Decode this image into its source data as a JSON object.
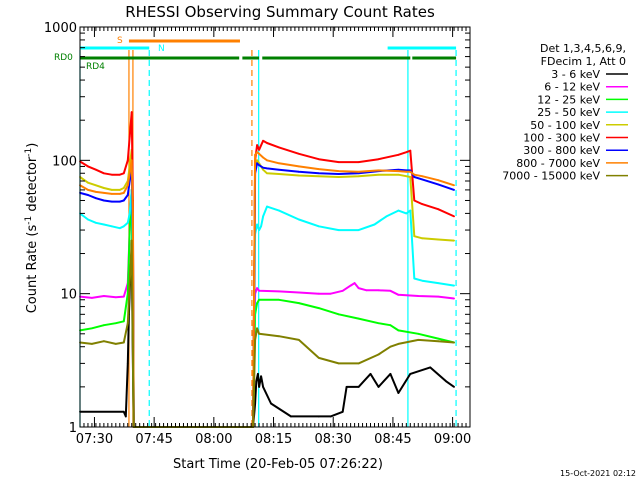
{
  "chart_data": {
    "type": "line",
    "title": "RHESSI Observing Summary Count Rates",
    "xlabel": "Start Time (20-Feb-05 07:26:22)",
    "ylabel_main": "Count Rate (s",
    "ylabel_sup1": "-1",
    "ylabel_mid": " detector",
    "ylabel_sup2": "-1",
    "ylabel_end": ")",
    "yscale": "log",
    "ylim": [
      1,
      1000
    ],
    "xlim_minutes": [
      0,
      98
    ],
    "yticks": [
      {
        "value": 1,
        "label": "1"
      },
      {
        "value": 10,
        "label": "10"
      },
      {
        "value": 100,
        "label": "100"
      },
      {
        "value": 1000,
        "label": "1000"
      }
    ],
    "xticks": [
      {
        "minute": 3.63,
        "label": "07:30"
      },
      {
        "minute": 18.63,
        "label": "07:45"
      },
      {
        "minute": 33.63,
        "label": "08:00"
      },
      {
        "minute": 48.63,
        "label": "08:15"
      },
      {
        "minute": 63.63,
        "label": "08:30"
      },
      {
        "minute": 78.63,
        "label": "08:45"
      },
      {
        "minute": 93.63,
        "label": "09:00"
      }
    ],
    "legend": {
      "title1": "Det 1,3,4,5,6,9,",
      "title2": "FDecim 1, Att 0",
      "position": "right"
    },
    "series": [
      {
        "name": "3 - 6 keV",
        "color": "#000000",
        "points": [
          [
            0,
            1.3
          ],
          [
            11,
            1.3
          ],
          [
            11.5,
            1.2
          ],
          [
            12,
            3.0
          ],
          [
            12.3,
            7.0
          ],
          [
            12.7,
            15.0
          ],
          [
            13,
            20.0
          ],
          [
            13.3,
            3.0
          ],
          [
            13.5,
            1.0
          ],
          [
            43.5,
            1.0
          ],
          [
            44,
            1.5
          ],
          [
            44.3,
            2.2
          ],
          [
            44.7,
            2.5
          ],
          [
            45,
            2.0
          ],
          [
            45.5,
            2.4
          ],
          [
            46,
            2.0
          ],
          [
            48,
            1.5
          ],
          [
            53,
            1.2
          ],
          [
            60,
            1.2
          ],
          [
            63,
            1.2
          ],
          [
            66,
            1.3
          ],
          [
            67,
            2.0
          ],
          [
            70,
            2.0
          ],
          [
            73,
            2.5
          ],
          [
            75,
            2.0
          ],
          [
            78,
            2.5
          ],
          [
            80,
            1.8
          ],
          [
            83,
            2.5
          ],
          [
            88,
            2.8
          ],
          [
            92,
            2.2
          ],
          [
            94,
            2.0
          ]
        ]
      },
      {
        "name": "6 - 12 keV",
        "color": "#ff00ff",
        "points": [
          [
            0,
            9.5
          ],
          [
            3,
            9.3
          ],
          [
            6,
            9.6
          ],
          [
            9,
            9.4
          ],
          [
            11,
            9.5
          ],
          [
            12,
            12.0
          ],
          [
            12.5,
            30.0
          ],
          [
            13,
            60.0
          ],
          [
            13.3,
            8.0
          ],
          [
            13.5,
            1.0
          ],
          [
            43.5,
            1.0
          ],
          [
            44,
            10.0
          ],
          [
            44.5,
            11.0
          ],
          [
            45,
            10.5
          ],
          [
            50,
            10.4
          ],
          [
            55,
            10.2
          ],
          [
            60,
            10.0
          ],
          [
            63,
            10.0
          ],
          [
            66,
            10.5
          ],
          [
            68,
            11.5
          ],
          [
            69,
            12.0
          ],
          [
            70,
            11.0
          ],
          [
            72,
            10.6
          ],
          [
            75,
            10.6
          ],
          [
            78,
            10.5
          ],
          [
            80,
            9.8
          ],
          [
            85,
            9.6
          ],
          [
            90,
            9.5
          ],
          [
            94,
            9.2
          ]
        ]
      },
      {
        "name": "12 - 25 keV",
        "color": "#00ff00",
        "points": [
          [
            0,
            5.3
          ],
          [
            3,
            5.5
          ],
          [
            6,
            5.8
          ],
          [
            9,
            6.0
          ],
          [
            11,
            6.2
          ],
          [
            12,
            10.0
          ],
          [
            12.5,
            30.0
          ],
          [
            13,
            60.0
          ],
          [
            13.3,
            5.0
          ],
          [
            13.5,
            1.0
          ],
          [
            43.5,
            1.0
          ],
          [
            44,
            7.0
          ],
          [
            44.5,
            8.5
          ],
          [
            45,
            9.0
          ],
          [
            50,
            9.0
          ],
          [
            55,
            8.5
          ],
          [
            60,
            7.8
          ],
          [
            65,
            7.0
          ],
          [
            70,
            6.5
          ],
          [
            75,
            6.0
          ],
          [
            78,
            5.8
          ],
          [
            80,
            5.3
          ],
          [
            85,
            5.0
          ],
          [
            90,
            4.6
          ],
          [
            94,
            4.3
          ]
        ]
      },
      {
        "name": "25 - 50 keV",
        "color": "#00ffff",
        "points": [
          [
            0,
            40.0
          ],
          [
            2,
            36.0
          ],
          [
            4,
            34.0
          ],
          [
            6,
            33.0
          ],
          [
            8,
            32.0
          ],
          [
            10,
            31.0
          ],
          [
            11,
            32.0
          ],
          [
            12,
            34.0
          ],
          [
            12.5,
            40.0
          ],
          [
            13,
            60.0
          ],
          [
            13.3,
            20.0
          ],
          [
            13.5,
            1.0
          ],
          [
            43.5,
            1.0
          ],
          [
            44,
            28.0
          ],
          [
            44.5,
            33.0
          ],
          [
            45,
            30.0
          ],
          [
            45.5,
            32.0
          ],
          [
            46,
            38.0
          ],
          [
            47,
            45.0
          ],
          [
            50,
            42.0
          ],
          [
            55,
            36.0
          ],
          [
            60,
            32.0
          ],
          [
            65,
            30.0
          ],
          [
            70,
            30.0
          ],
          [
            74,
            33.0
          ],
          [
            77,
            38.0
          ],
          [
            80,
            42.0
          ],
          [
            82,
            40.0
          ],
          [
            83,
            42.0
          ],
          [
            84,
            13.0
          ],
          [
            86,
            12.5
          ],
          [
            90,
            12.0
          ],
          [
            94,
            11.5
          ]
        ]
      },
      {
        "name": "50 - 100 keV",
        "color": "#cccc00",
        "points": [
          [
            0,
            75.0
          ],
          [
            2,
            68.0
          ],
          [
            4,
            65.0
          ],
          [
            6,
            62.0
          ],
          [
            8,
            60.0
          ],
          [
            10,
            60.0
          ],
          [
            11,
            62.0
          ],
          [
            12,
            70.0
          ],
          [
            12.5,
            90.0
          ],
          [
            13,
            120.0
          ],
          [
            13.3,
            40.0
          ],
          [
            13.5,
            1.0
          ],
          [
            43.5,
            1.0
          ],
          [
            44,
            90.0
          ],
          [
            44.5,
            100.0
          ],
          [
            45,
            95.0
          ],
          [
            46,
            85.0
          ],
          [
            47,
            80.0
          ],
          [
            50,
            79.0
          ],
          [
            55,
            77.0
          ],
          [
            60,
            76.0
          ],
          [
            65,
            75.0
          ],
          [
            70,
            76.0
          ],
          [
            75,
            78.0
          ],
          [
            80,
            78.0
          ],
          [
            82,
            76.0
          ],
          [
            83,
            75.0
          ],
          [
            84,
            27.0
          ],
          [
            86,
            26.0
          ],
          [
            90,
            25.5
          ],
          [
            94,
            25.0
          ]
        ]
      },
      {
        "name": "100 - 300 keV",
        "color": "#ff0000",
        "points": [
          [
            0,
            98.0
          ],
          [
            2,
            90.0
          ],
          [
            4,
            85.0
          ],
          [
            6,
            80.0
          ],
          [
            8,
            78.0
          ],
          [
            10,
            78.0
          ],
          [
            11,
            80.0
          ],
          [
            12,
            100.0
          ],
          [
            12.5,
            150.0
          ],
          [
            13,
            230.0
          ],
          [
            13.3,
            50.0
          ],
          [
            13.5,
            1.0
          ],
          [
            43.5,
            1.0
          ],
          [
            44,
            100.0
          ],
          [
            44.5,
            130.0
          ],
          [
            45,
            120.0
          ],
          [
            46,
            140.0
          ],
          [
            47,
            135.0
          ],
          [
            50,
            125.0
          ],
          [
            55,
            112.0
          ],
          [
            60,
            102.0
          ],
          [
            65,
            97.0
          ],
          [
            70,
            97.0
          ],
          [
            75,
            102.0
          ],
          [
            80,
            110.0
          ],
          [
            82,
            115.0
          ],
          [
            83,
            118.0
          ],
          [
            84,
            50.0
          ],
          [
            86,
            47.0
          ],
          [
            90,
            43.0
          ],
          [
            94,
            38.0
          ]
        ]
      },
      {
        "name": "300 - 800 keV",
        "color": "#0000ff",
        "points": [
          [
            0,
            57.0
          ],
          [
            2,
            55.0
          ],
          [
            4,
            52.0
          ],
          [
            6,
            50.0
          ],
          [
            8,
            49.0
          ],
          [
            10,
            49.0
          ],
          [
            11,
            50.0
          ],
          [
            12,
            55.0
          ],
          [
            12.5,
            70.0
          ],
          [
            13,
            90.0
          ],
          [
            13.3,
            30.0
          ],
          [
            13.5,
            1.0
          ],
          [
            43.5,
            1.0
          ],
          [
            44,
            80.0
          ],
          [
            44.5,
            95.0
          ],
          [
            45,
            92.0
          ],
          [
            46,
            88.0
          ],
          [
            47,
            87.0
          ],
          [
            50,
            85.0
          ],
          [
            55,
            82.0
          ],
          [
            60,
            80.0
          ],
          [
            65,
            79.0
          ],
          [
            70,
            80.0
          ],
          [
            75,
            83.0
          ],
          [
            80,
            85.0
          ],
          [
            82,
            84.0
          ],
          [
            83,
            84.0
          ],
          [
            84,
            75.0
          ],
          [
            86,
            72.0
          ],
          [
            90,
            66.0
          ],
          [
            94,
            60.0
          ]
        ]
      },
      {
        "name": "800 - 7000 keV",
        "color": "#ff8000",
        "points": [
          [
            0,
            65.0
          ],
          [
            2,
            60.0
          ],
          [
            4,
            58.0
          ],
          [
            6,
            57.0
          ],
          [
            8,
            56.0
          ],
          [
            10,
            56.0
          ],
          [
            11,
            57.0
          ],
          [
            12,
            65.0
          ],
          [
            12.5,
            80.0
          ],
          [
            13,
            100.0
          ],
          [
            13.3,
            40.0
          ],
          [
            13.5,
            1.0
          ],
          [
            43.5,
            1.0
          ],
          [
            44,
            110.0
          ],
          [
            44.5,
            115.0
          ],
          [
            45,
            112.0
          ],
          [
            46,
            105.0
          ],
          [
            47,
            100.0
          ],
          [
            50,
            95.0
          ],
          [
            55,
            90.0
          ],
          [
            60,
            86.0
          ],
          [
            65,
            83.0
          ],
          [
            70,
            82.0
          ],
          [
            75,
            84.0
          ],
          [
            80,
            83.0
          ],
          [
            82,
            82.0
          ],
          [
            83,
            82.0
          ],
          [
            84,
            78.0
          ],
          [
            86,
            76.0
          ],
          [
            90,
            71.0
          ],
          [
            94,
            65.0
          ]
        ]
      },
      {
        "name": "7000 - 15000 keV",
        "color": "#808000",
        "points": [
          [
            0,
            4.3
          ],
          [
            3,
            4.2
          ],
          [
            6,
            4.4
          ],
          [
            9,
            4.2
          ],
          [
            11,
            4.3
          ],
          [
            12,
            6.0
          ],
          [
            12.5,
            12.0
          ],
          [
            13,
            25.0
          ],
          [
            13.3,
            4.0
          ],
          [
            13.5,
            1.0
          ],
          [
            43.5,
            1.0
          ],
          [
            44,
            4.5
          ],
          [
            44.5,
            5.5
          ],
          [
            45,
            5.0
          ],
          [
            50,
            4.8
          ],
          [
            55,
            4.5
          ],
          [
            60,
            3.3
          ],
          [
            65,
            3.0
          ],
          [
            70,
            3.0
          ],
          [
            75,
            3.5
          ],
          [
            78,
            4.0
          ],
          [
            80,
            4.2
          ],
          [
            85,
            4.5
          ],
          [
            90,
            4.4
          ],
          [
            94,
            4.3
          ]
        ]
      }
    ],
    "vertical_lines": [
      {
        "minute": 0.0,
        "color": "#00ffff",
        "style": "solid"
      },
      {
        "minute": 12.3,
        "color": "#ff8000",
        "style": "solid"
      },
      {
        "minute": 13.3,
        "color": "#ff8000",
        "style": "solid"
      },
      {
        "minute": 17.4,
        "color": "#00ffff",
        "style": "dashed"
      },
      {
        "minute": 43.2,
        "color": "#ff8000",
        "style": "dashed"
      },
      {
        "minute": 44.9,
        "color": "#00ffff",
        "style": "solid"
      },
      {
        "minute": 82.4,
        "color": "#00ffff",
        "style": "solid"
      },
      {
        "minute": 94.5,
        "color": "#00ffff",
        "style": "dashed"
      }
    ],
    "status_bars": [
      {
        "label": "S",
        "color": "#ff8000",
        "segments": [
          [
            12.3,
            40.2
          ]
        ]
      },
      {
        "label": "N",
        "color": "#00ffff",
        "segments": [
          [
            0.0,
            17.4
          ],
          [
            77.3,
            94.5
          ]
        ]
      },
      {
        "label": "RD0",
        "color": "#008000",
        "segments": [
          [
            0.0,
            40.0
          ],
          [
            40.8,
            45.0
          ],
          [
            45.8,
            83.0
          ],
          [
            83.5,
            94.5
          ]
        ]
      },
      {
        "label": "RD4",
        "color": "#008000",
        "segments": []
      }
    ],
    "status_labels": {
      "S": "S",
      "N": "N",
      "RD0": "RD0",
      "RD4": "RD4"
    }
  },
  "footer": {
    "timestamp": "15-Oct-2021 02:12"
  }
}
